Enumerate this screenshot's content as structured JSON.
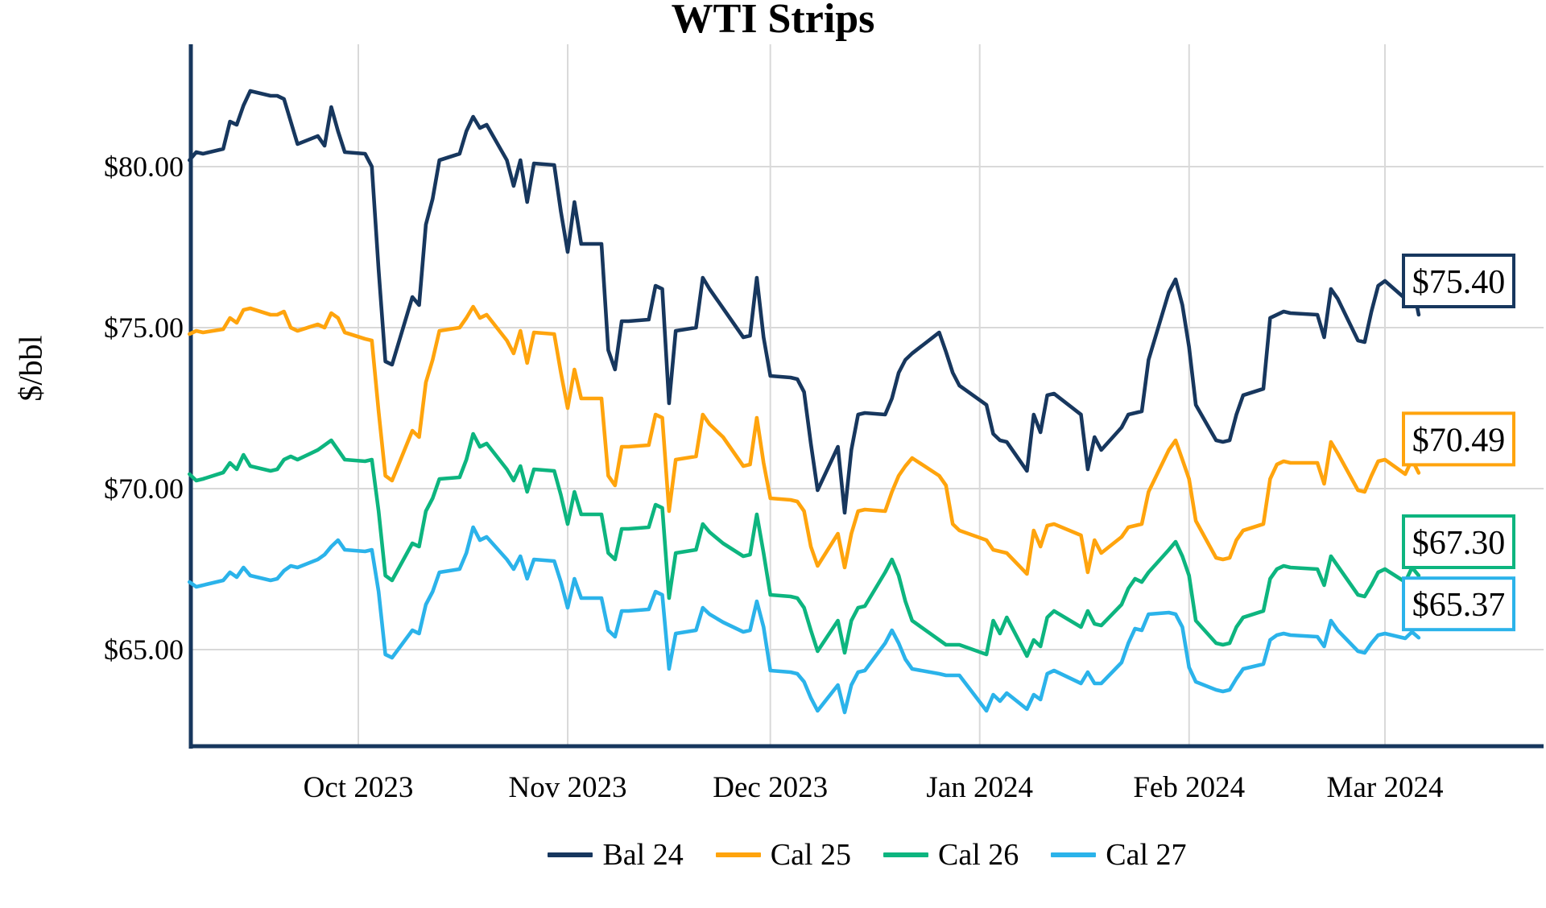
{
  "title": "WTI Strips",
  "y_axis": {
    "label": "$/bbl",
    "ticks": [
      {
        "label": "$80.00",
        "value": 80
      },
      {
        "label": "$75.00",
        "value": 75
      },
      {
        "label": "$70.00",
        "value": 70
      },
      {
        "label": "$65.00",
        "value": 65
      }
    ]
  },
  "x_axis": {
    "ticks": [
      {
        "label": "Oct 2023",
        "date": "2023-10-01"
      },
      {
        "label": "Nov 2023",
        "date": "2023-11-01"
      },
      {
        "label": "Dec 2023",
        "date": "2023-12-01"
      },
      {
        "label": "Jan 2024",
        "date": "2024-01-01"
      },
      {
        "label": "Feb 2024",
        "date": "2024-02-01"
      },
      {
        "label": "Mar 2024",
        "date": "2024-03-01"
      }
    ]
  },
  "legend": [
    {
      "label": "Bal 24",
      "color": "#17375e"
    },
    {
      "label": "Cal 25",
      "color": "#ffa40d"
    },
    {
      "label": "Cal 26",
      "color": "#0db57f"
    },
    {
      "label": "Cal 27",
      "color": "#2bb3ea"
    }
  ],
  "colors": {
    "grid": "#d9d9d9",
    "axis": "#17375e",
    "text": "#000000",
    "background": "#ffffff"
  },
  "chart_data": {
    "type": "line",
    "title": "WTI Strips",
    "ylabel": "$/bbl",
    "ylim": [
      62.0,
      83.8
    ],
    "grid": true,
    "legend_position": "bottom",
    "x_unit": "date",
    "dates": [
      "2023-09-06",
      "2023-09-07",
      "2023-09-08",
      "2023-09-11",
      "2023-09-12",
      "2023-09-13",
      "2023-09-14",
      "2023-09-15",
      "2023-09-18",
      "2023-09-19",
      "2023-09-20",
      "2023-09-21",
      "2023-09-22",
      "2023-09-25",
      "2023-09-26",
      "2023-09-27",
      "2023-09-28",
      "2023-09-29",
      "2023-10-02",
      "2023-10-03",
      "2023-10-04",
      "2023-10-05",
      "2023-10-06",
      "2023-10-09",
      "2023-10-10",
      "2023-10-11",
      "2023-10-12",
      "2023-10-13",
      "2023-10-16",
      "2023-10-17",
      "2023-10-18",
      "2023-10-19",
      "2023-10-20",
      "2023-10-23",
      "2023-10-24",
      "2023-10-25",
      "2023-10-26",
      "2023-10-27",
      "2023-10-30",
      "2023-10-31",
      "2023-11-01",
      "2023-11-02",
      "2023-11-03",
      "2023-11-06",
      "2023-11-07",
      "2023-11-08",
      "2023-11-09",
      "2023-11-10",
      "2023-11-13",
      "2023-11-14",
      "2023-11-15",
      "2023-11-16",
      "2023-11-17",
      "2023-11-20",
      "2023-11-21",
      "2023-11-22",
      "2023-11-24",
      "2023-11-27",
      "2023-11-28",
      "2023-11-29",
      "2023-11-30",
      "2023-12-01",
      "2023-12-04",
      "2023-12-05",
      "2023-12-06",
      "2023-12-07",
      "2023-12-08",
      "2023-12-11",
      "2023-12-12",
      "2023-12-13",
      "2023-12-14",
      "2023-12-15",
      "2023-12-18",
      "2023-12-19",
      "2023-12-20",
      "2023-12-21",
      "2023-12-22",
      "2023-12-26",
      "2023-12-27",
      "2023-12-28",
      "2023-12-29",
      "2024-01-02",
      "2024-01-03",
      "2024-01-04",
      "2024-01-05",
      "2024-01-08",
      "2024-01-09",
      "2024-01-10",
      "2024-01-11",
      "2024-01-12",
      "2024-01-16",
      "2024-01-17",
      "2024-01-18",
      "2024-01-19",
      "2024-01-22",
      "2024-01-23",
      "2024-01-24",
      "2024-01-25",
      "2024-01-26",
      "2024-01-29",
      "2024-01-30",
      "2024-01-31",
      "2024-02-01",
      "2024-02-02",
      "2024-02-05",
      "2024-02-06",
      "2024-02-07",
      "2024-02-08",
      "2024-02-09",
      "2024-02-12",
      "2024-02-13",
      "2024-02-14",
      "2024-02-15",
      "2024-02-16",
      "2024-02-20",
      "2024-02-21",
      "2024-02-22",
      "2024-02-23",
      "2024-02-26",
      "2024-02-27",
      "2024-02-28",
      "2024-02-29",
      "2024-03-01",
      "2024-03-04",
      "2024-03-05",
      "2024-03-06"
    ],
    "series": [
      {
        "name": "Bal 24",
        "color": "#17375e",
        "final_label": "$75.40",
        "final_value": 75.4,
        "values": [
          80.2,
          80.45,
          80.4,
          80.55,
          81.4,
          81.3,
          81.9,
          82.35,
          82.2,
          82.2,
          82.1,
          81.4,
          80.7,
          80.95,
          80.65,
          81.85,
          81.1,
          80.45,
          80.4,
          80.0,
          76.8,
          73.95,
          73.85,
          75.95,
          75.7,
          78.2,
          79.0,
          80.2,
          80.4,
          81.1,
          81.55,
          81.2,
          81.3,
          80.2,
          79.4,
          80.2,
          78.9,
          80.1,
          80.05,
          78.6,
          77.35,
          78.9,
          77.6,
          77.6,
          74.3,
          73.7,
          75.2,
          75.2,
          75.25,
          76.3,
          76.2,
          72.65,
          74.9,
          75.0,
          76.55,
          76.2,
          75.6,
          74.7,
          74.75,
          76.55,
          74.7,
          73.5,
          73.45,
          73.4,
          73.0,
          71.4,
          69.95,
          71.3,
          69.25,
          71.2,
          72.3,
          72.35,
          72.3,
          72.8,
          73.6,
          74.0,
          74.2,
          74.85,
          74.25,
          73.6,
          73.2,
          72.6,
          71.7,
          71.5,
          71.45,
          70.55,
          72.3,
          71.75,
          72.9,
          72.95,
          72.3,
          70.6,
          71.6,
          71.2,
          71.9,
          72.3,
          72.35,
          72.4,
          74.0,
          76.1,
          76.5,
          75.7,
          74.4,
          72.6,
          71.5,
          71.45,
          71.5,
          72.3,
          72.9,
          73.1,
          75.3,
          75.4,
          75.5,
          75.45,
          75.4,
          74.7,
          76.2,
          75.9,
          74.6,
          74.55,
          75.5,
          76.3,
          76.45,
          75.9,
          76.45,
          75.4
        ]
      },
      {
        "name": "Cal 25",
        "color": "#ffa40d",
        "final_label": "$70.49",
        "final_value": 70.49,
        "values": [
          74.8,
          74.9,
          74.85,
          74.95,
          75.3,
          75.15,
          75.55,
          75.6,
          75.4,
          75.4,
          75.5,
          75.0,
          74.9,
          75.1,
          75.0,
          75.45,
          75.3,
          74.85,
          74.65,
          74.6,
          72.4,
          70.4,
          70.25,
          71.8,
          71.6,
          73.3,
          74.0,
          74.9,
          75.0,
          75.3,
          75.65,
          75.3,
          75.4,
          74.6,
          74.2,
          74.9,
          73.9,
          74.85,
          74.8,
          73.6,
          72.5,
          73.7,
          72.8,
          72.8,
          70.4,
          70.1,
          71.3,
          71.3,
          71.35,
          72.3,
          72.2,
          69.3,
          70.9,
          71.0,
          72.3,
          72.0,
          71.6,
          70.7,
          70.75,
          72.2,
          70.8,
          69.7,
          69.65,
          69.6,
          69.3,
          68.2,
          67.6,
          68.6,
          67.55,
          68.6,
          69.3,
          69.35,
          69.3,
          69.9,
          70.4,
          70.7,
          70.95,
          70.4,
          70.1,
          68.9,
          68.7,
          68.4,
          68.1,
          68.05,
          68.0,
          67.35,
          68.7,
          68.2,
          68.85,
          68.9,
          68.55,
          67.4,
          68.4,
          68.0,
          68.5,
          68.8,
          68.85,
          68.9,
          69.9,
          71.2,
          71.5,
          70.9,
          70.3,
          69.0,
          67.85,
          67.8,
          67.85,
          68.4,
          68.7,
          68.9,
          70.3,
          70.75,
          70.85,
          70.8,
          70.8,
          70.15,
          71.45,
          71.1,
          69.95,
          69.9,
          70.4,
          70.85,
          70.9,
          70.45,
          70.9,
          70.49
        ]
      },
      {
        "name": "Cal 26",
        "color": "#0db57f",
        "final_label": "$67.30",
        "final_value": 67.3,
        "values": [
          70.45,
          70.25,
          70.3,
          70.5,
          70.8,
          70.6,
          71.05,
          70.7,
          70.55,
          70.6,
          70.9,
          71.0,
          70.9,
          71.2,
          71.35,
          71.5,
          71.2,
          70.9,
          70.85,
          70.9,
          69.3,
          67.3,
          67.15,
          68.3,
          68.2,
          69.3,
          69.7,
          70.3,
          70.35,
          70.9,
          71.7,
          71.3,
          71.4,
          70.6,
          70.25,
          70.7,
          69.9,
          70.6,
          70.55,
          69.8,
          68.9,
          69.9,
          69.2,
          69.2,
          68.0,
          67.8,
          68.75,
          68.75,
          68.8,
          69.5,
          69.4,
          66.6,
          68.0,
          68.1,
          68.9,
          68.65,
          68.3,
          67.9,
          67.95,
          69.2,
          68.0,
          66.7,
          66.65,
          66.6,
          66.3,
          65.6,
          64.95,
          65.9,
          64.9,
          65.9,
          66.3,
          66.35,
          67.4,
          67.8,
          67.3,
          66.5,
          65.9,
          65.3,
          65.15,
          65.15,
          65.15,
          64.85,
          65.9,
          65.5,
          66.0,
          64.8,
          65.3,
          65.1,
          66.0,
          66.2,
          65.7,
          66.2,
          65.8,
          65.75,
          66.4,
          66.9,
          67.2,
          67.1,
          67.4,
          68.1,
          68.35,
          67.9,
          67.3,
          65.9,
          65.2,
          65.15,
          65.2,
          65.7,
          66.0,
          66.2,
          67.2,
          67.5,
          67.6,
          67.55,
          67.5,
          67.0,
          67.9,
          67.6,
          66.7,
          66.65,
          67.0,
          67.4,
          67.5,
          67.1,
          67.55,
          67.3
        ]
      },
      {
        "name": "Cal 27",
        "color": "#2bb3ea",
        "final_label": "$65.37",
        "final_value": 65.37,
        "values": [
          67.1,
          66.95,
          67.0,
          67.15,
          67.4,
          67.25,
          67.55,
          67.3,
          67.15,
          67.2,
          67.45,
          67.6,
          67.55,
          67.8,
          67.95,
          68.2,
          68.4,
          68.1,
          68.05,
          68.1,
          66.8,
          64.85,
          64.75,
          65.6,
          65.5,
          66.4,
          66.8,
          67.4,
          67.5,
          68.0,
          68.8,
          68.4,
          68.5,
          67.8,
          67.5,
          67.9,
          67.2,
          67.8,
          67.75,
          67.1,
          66.3,
          67.2,
          66.6,
          66.6,
          65.6,
          65.4,
          66.2,
          66.2,
          66.25,
          66.8,
          66.7,
          64.4,
          65.5,
          65.6,
          66.3,
          66.1,
          65.85,
          65.55,
          65.6,
          66.5,
          65.7,
          64.35,
          64.3,
          64.25,
          64.0,
          63.5,
          63.1,
          63.9,
          63.05,
          63.9,
          64.3,
          64.35,
          65.2,
          65.6,
          65.2,
          64.7,
          64.4,
          64.25,
          64.2,
          64.2,
          64.2,
          63.1,
          63.6,
          63.4,
          63.65,
          63.15,
          63.6,
          63.45,
          64.25,
          64.35,
          63.95,
          64.3,
          63.95,
          63.95,
          64.6,
          65.2,
          65.65,
          65.6,
          66.1,
          66.15,
          66.1,
          65.7,
          64.45,
          64.0,
          63.75,
          63.7,
          63.75,
          64.1,
          64.4,
          64.55,
          65.3,
          65.45,
          65.5,
          65.45,
          65.4,
          65.1,
          65.9,
          65.6,
          64.95,
          64.9,
          65.2,
          65.45,
          65.5,
          65.35,
          65.55,
          65.37
        ]
      }
    ]
  }
}
